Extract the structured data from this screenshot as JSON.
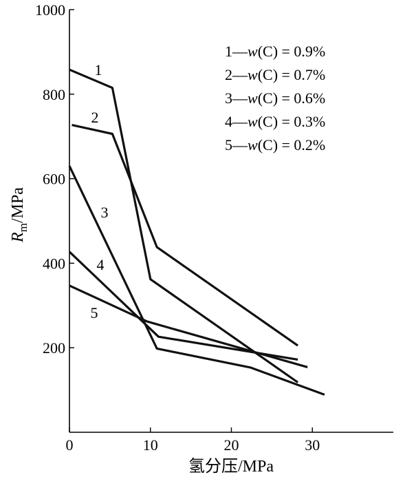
{
  "chart_data": {
    "type": "line",
    "xlabel": "氢分压/MPa",
    "ylabel": {
      "main": "R",
      "sub": "m",
      "rest": "/MPa"
    },
    "xlim": [
      0,
      40
    ],
    "ylim": [
      0,
      1000
    ],
    "xticks": [
      0,
      10,
      20,
      30
    ],
    "yticks": [
      200,
      400,
      600,
      800,
      1000
    ],
    "grid": false,
    "legend_position": "top-right",
    "series": [
      {
        "name": "1",
        "legend": {
          "num": "1",
          "dash": "—",
          "w": "w",
          "cond": "(C) = 0.9%"
        },
        "x": [
          0,
          5.3,
          10,
          28.2
        ],
        "y": [
          858,
          815,
          362,
          118
        ]
      },
      {
        "name": "2",
        "legend": {
          "num": "2",
          "dash": "—",
          "w": "w",
          "cond": "(C) = 0.7%"
        },
        "x": [
          0.3,
          5.3,
          10.8,
          28.2
        ],
        "y": [
          727,
          706,
          438,
          205
        ]
      },
      {
        "name": "3",
        "legend": {
          "num": "3",
          "dash": "—",
          "w": "w",
          "cond": "(C) = 0.6%"
        },
        "x": [
          0,
          10.8,
          22.4,
          31.5
        ],
        "y": [
          630,
          198,
          153,
          89
        ]
      },
      {
        "name": "4",
        "legend": {
          "num": "4",
          "dash": "—",
          "w": "w",
          "cond": "(C) = 0.3%"
        },
        "x": [
          0,
          11,
          28.2
        ],
        "y": [
          427,
          226,
          172
        ]
      },
      {
        "name": "5",
        "legend": {
          "num": "5",
          "dash": "—",
          "w": "w",
          "cond": "(C) = 0.2%"
        },
        "x": [
          0,
          9.6,
          29.4
        ],
        "y": [
          347,
          262,
          154
        ]
      }
    ]
  }
}
